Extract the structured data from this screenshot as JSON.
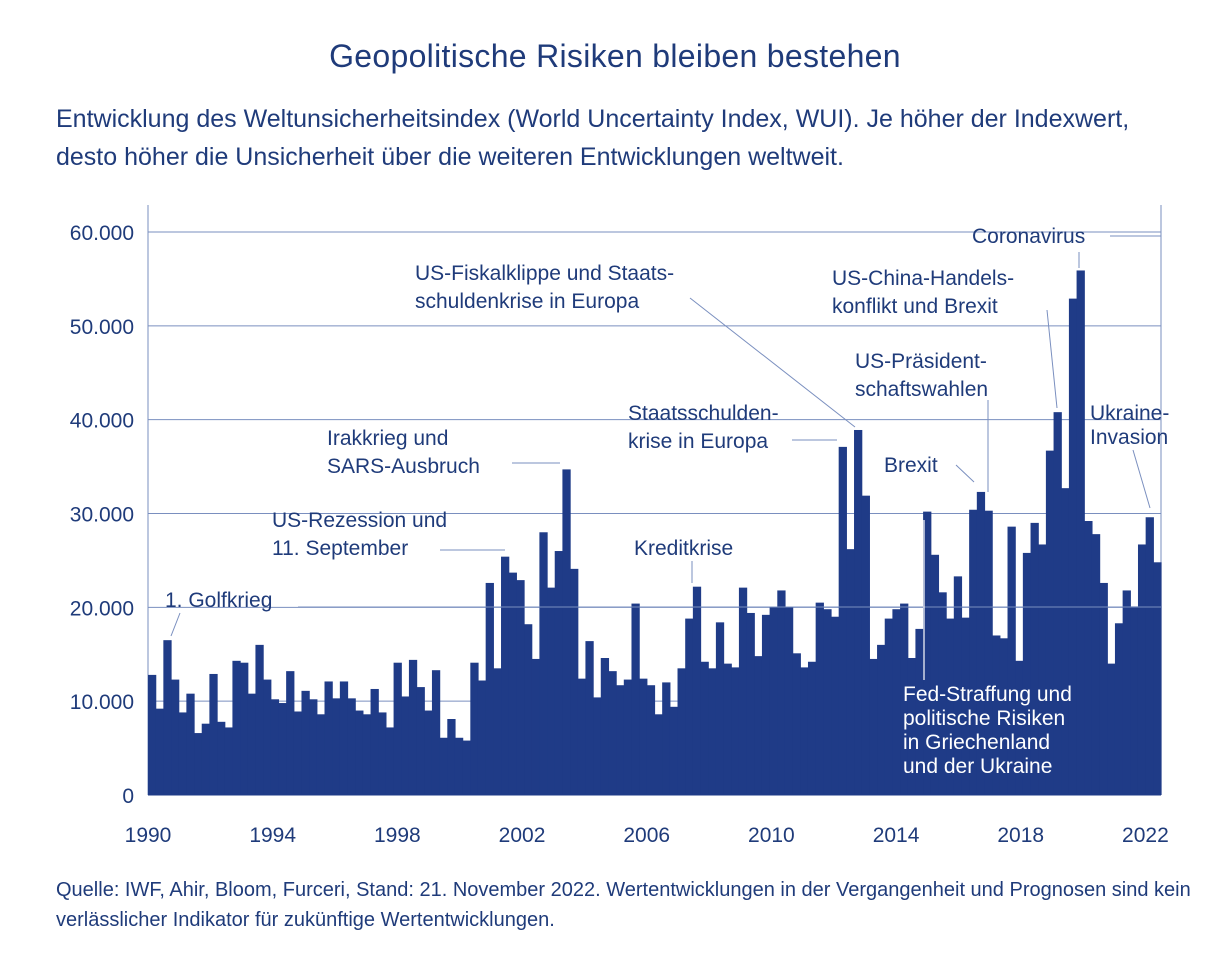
{
  "title": "Geopolitische Risiken bleiben bestehen",
  "subtitle": "Entwicklung des Weltunsicherheitsindex (World Uncertainty Index, WUI). Je höher der Indexwert, desto höher die Unsicherheit über die weiteren Entwicklungen weltweit.",
  "source": "Quelle: IWF, Ahir, Bloom, Furceri, Stand: 21. November 2022. Wertentwicklungen in der Vergangenheit und Prognosen sind kein verlässlicher Indikator für zukünftige Wertentwicklungen.",
  "colors": {
    "bars": "#1f3b87",
    "text": "#1f3b7a",
    "grid": "#7a8fbf"
  },
  "chart_data": {
    "type": "bar",
    "xlim": [
      1990,
      2022.5
    ],
    "ylim": [
      0,
      60000
    ],
    "grid": true,
    "xticks": [
      "1990",
      "1994",
      "1998",
      "2002",
      "2006",
      "2010",
      "2014",
      "2018",
      "2022"
    ],
    "yticks": [
      "0",
      "10.000",
      "20.000",
      "30.000",
      "40.000",
      "50.000",
      "60.000"
    ],
    "values": [
      12800,
      9200,
      16500,
      12300,
      8800,
      10800,
      6600,
      7600,
      12900,
      7800,
      7200,
      14300,
      14100,
      10800,
      16000,
      12300,
      10200,
      9800,
      13200,
      8900,
      11100,
      10200,
      8600,
      12100,
      10300,
      12100,
      10300,
      9000,
      8600,
      11300,
      8800,
      7200,
      14100,
      10500,
      14400,
      11500,
      9000,
      13300,
      6100,
      8100,
      6100,
      5800,
      14100,
      12200,
      22600,
      13500,
      25400,
      23700,
      22900,
      18200,
      14500,
      28000,
      22100,
      26000,
      34700,
      24100,
      12400,
      16400,
      10400,
      14600,
      13200,
      11700,
      12300,
      20400,
      12400,
      11700,
      8600,
      12000,
      9400,
      13500,
      18800,
      22200,
      14200,
      13500,
      18400,
      14000,
      13600,
      22100,
      19400,
      14800,
      19200,
      20000,
      21800,
      20000,
      15100,
      13600,
      14200,
      20500,
      19800,
      19000,
      37100,
      26200,
      38900,
      31900,
      14500,
      16000,
      18800,
      19800,
      20400,
      14600,
      17700,
      30200,
      25600,
      21600,
      18800,
      23300,
      18900,
      30400,
      32300,
      30300,
      17000,
      16700,
      28600,
      14300,
      25800,
      29000,
      26700,
      36700,
      40800,
      32700,
      52900,
      55900,
      29200,
      27800,
      22600,
      14000,
      18300,
      21800,
      20100,
      26700,
      29600,
      24800
    ],
    "annotations": [
      {
        "lines": [
          "1. Golfkrieg"
        ]
      },
      {
        "lines": [
          "US-Rezession und",
          "11. September"
        ]
      },
      {
        "lines": [
          "Irakkrieg und",
          "SARS-Ausbruch"
        ]
      },
      {
        "lines": [
          "Kreditkrise"
        ]
      },
      {
        "lines": [
          "US-Fiskalklippe und Staats-",
          "schuldenkrise in Europa"
        ]
      },
      {
        "lines": [
          "Staatsschulden-",
          "krise in Europa"
        ]
      },
      {
        "lines": [
          "Brexit"
        ]
      },
      {
        "lines": [
          "US-Präsident-",
          "schaftswahlen"
        ]
      },
      {
        "lines": [
          "US-China-Handels-",
          "konflikt und Brexit"
        ]
      },
      {
        "lines": [
          "Coronavirus"
        ]
      },
      {
        "lines": [
          "Ukraine-",
          "Invasion"
        ]
      },
      {
        "lines": [
          "Fed-Straffung und",
          "politische Risiken",
          "in Griechenland",
          "und der Ukraine"
        ]
      }
    ]
  }
}
